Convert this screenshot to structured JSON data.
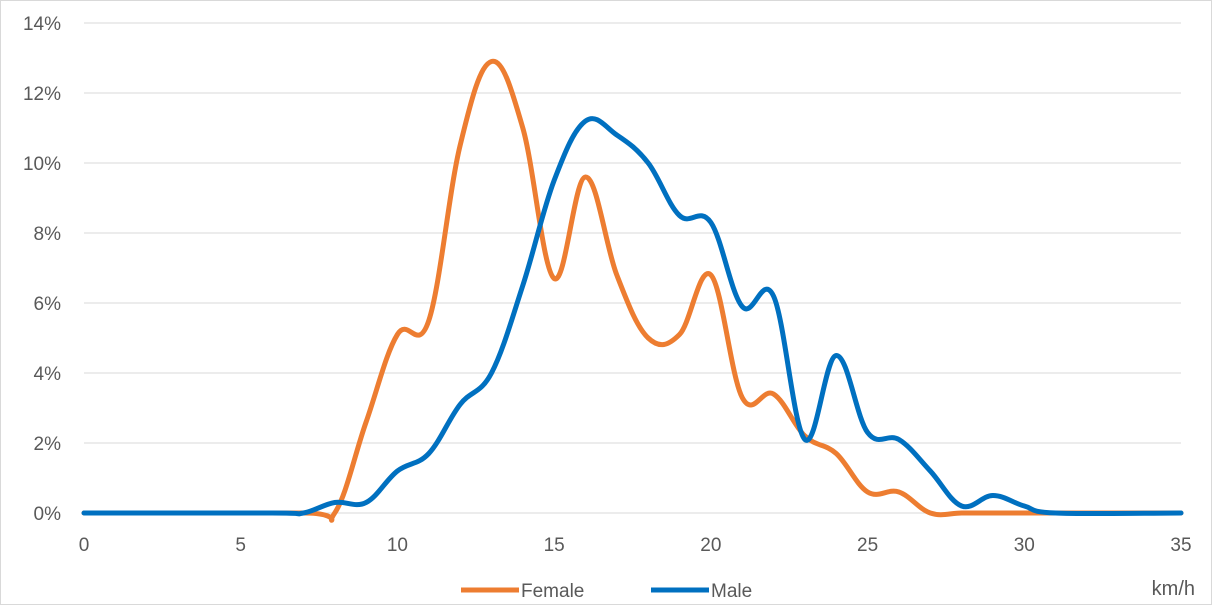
{
  "chart_data": {
    "type": "line",
    "title": "",
    "xlabel": "km/h",
    "ylabel": "",
    "xlim": [
      0,
      35
    ],
    "ylim": [
      0,
      14
    ],
    "x_ticks": [
      0,
      5,
      10,
      15,
      20,
      25,
      30,
      35
    ],
    "y_ticks": [
      0,
      2,
      4,
      6,
      8,
      10,
      12,
      14
    ],
    "y_tick_suffix": "%",
    "grid": "horizontal",
    "legend_position": "bottom",
    "smooth": true,
    "series": [
      {
        "name": "Female",
        "color": "#ed7d31",
        "points": [
          [
            0,
            0
          ],
          [
            7,
            0
          ],
          [
            8,
            0
          ],
          [
            9,
            2.6
          ],
          [
            10,
            5.1
          ],
          [
            11,
            5.5
          ],
          [
            12,
            10.5
          ],
          [
            13,
            12.9
          ],
          [
            14,
            11
          ],
          [
            15,
            6.7
          ],
          [
            16,
            9.6
          ],
          [
            17,
            6.8
          ],
          [
            18,
            5
          ],
          [
            19,
            5.1
          ],
          [
            20,
            6.8
          ],
          [
            21,
            3.3
          ],
          [
            22,
            3.4
          ],
          [
            23,
            2.2
          ],
          [
            24,
            1.7
          ],
          [
            25,
            0.6
          ],
          [
            26,
            0.6
          ],
          [
            27,
            0
          ],
          [
            28,
            0
          ],
          [
            29,
            0
          ],
          [
            30,
            0
          ],
          [
            31,
            0
          ],
          [
            35,
            0
          ]
        ]
      },
      {
        "name": "Male",
        "color": "#0070c0",
        "points": [
          [
            0,
            0
          ],
          [
            6,
            0
          ],
          [
            7,
            0
          ],
          [
            8,
            0.3
          ],
          [
            9,
            0.3
          ],
          [
            10,
            1.2
          ],
          [
            11,
            1.7
          ],
          [
            12,
            3.1
          ],
          [
            13,
            4
          ],
          [
            14,
            6.5
          ],
          [
            15,
            9.5
          ],
          [
            16,
            11.2
          ],
          [
            17,
            10.8
          ],
          [
            18,
            10
          ],
          [
            19,
            8.5
          ],
          [
            20,
            8.3
          ],
          [
            21,
            5.9
          ],
          [
            22,
            6.2
          ],
          [
            23,
            2.1
          ],
          [
            24,
            4.5
          ],
          [
            25,
            2.3
          ],
          [
            26,
            2.1
          ],
          [
            27,
            1.2
          ],
          [
            28,
            0.2
          ],
          [
            29,
            0.5
          ],
          [
            30,
            0.2
          ],
          [
            31,
            0
          ],
          [
            35,
            0
          ]
        ]
      }
    ]
  }
}
